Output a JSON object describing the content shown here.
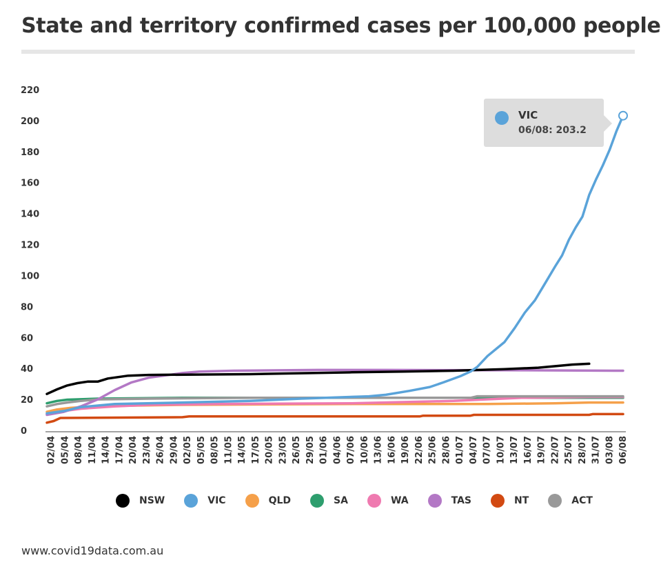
{
  "title": "State and territory confirmed cases per 100,000 people",
  "source": "www.covid19data.com.au",
  "tooltip": {
    "series": "VIC",
    "text": "06/08: 203.2",
    "color": "#5aa3d9"
  },
  "chart_data": {
    "type": "line",
    "title": "State and territory confirmed cases per 100,000 people",
    "xlabel": "",
    "ylabel": "",
    "ylim": [
      0,
      220
    ],
    "yticks": [
      0,
      20,
      40,
      60,
      80,
      100,
      120,
      140,
      160,
      180,
      200,
      220
    ],
    "x_start": "01/04",
    "x_end": "06/08",
    "xtick_labels": [
      "02/04",
      "05/04",
      "08/04",
      "11/04",
      "14/04",
      "17/04",
      "20/04",
      "23/04",
      "26/04",
      "29/04",
      "02/05",
      "05/05",
      "08/05",
      "11/05",
      "14/05",
      "17/05",
      "20/05",
      "23/05",
      "26/05",
      "29/05",
      "01/06",
      "04/06",
      "07/06",
      "10/06",
      "13/06",
      "16/06",
      "19/06",
      "22/06",
      "25/06",
      "28/06",
      "01/07",
      "04/07",
      "07/07",
      "10/07",
      "13/07",
      "16/07",
      "19/07",
      "22/07",
      "25/07",
      "28/07",
      "31/07",
      "03/08",
      "06/08"
    ],
    "legend_position": "bottom",
    "series": [
      {
        "name": "NSW",
        "color": "#000000",
        "points": [
          [
            0,
            23.5
          ],
          [
            3,
            26.5
          ],
          [
            6,
            29
          ],
          [
            9,
            30.5
          ],
          [
            12,
            31.5
          ],
          [
            15,
            31.5
          ],
          [
            18,
            33.5
          ],
          [
            24,
            35.3
          ],
          [
            30,
            35.8
          ],
          [
            41,
            36
          ],
          [
            60,
            36.3
          ],
          [
            90,
            37.5
          ],
          [
            105,
            38
          ],
          [
            120,
            38.5
          ],
          [
            135,
            39.5
          ],
          [
            145,
            40.5
          ],
          [
            155,
            42.5
          ],
          [
            160,
            43
          ]
        ]
      },
      {
        "name": "VIC",
        "color": "#5aa3d9",
        "points": [
          [
            0,
            11
          ],
          [
            5,
            12.5
          ],
          [
            10,
            15
          ],
          [
            20,
            17
          ],
          [
            40,
            18
          ],
          [
            60,
            19
          ],
          [
            75,
            20.5
          ],
          [
            95,
            22
          ],
          [
            100,
            23
          ],
          [
            107,
            25.5
          ],
          [
            113,
            28
          ],
          [
            117,
            31
          ],
          [
            122,
            35
          ],
          [
            125,
            38
          ],
          [
            127,
            41
          ],
          [
            130,
            48
          ],
          [
            135,
            57
          ],
          [
            138,
            66
          ],
          [
            141,
            76
          ],
          [
            144,
            84
          ],
          [
            147,
            95
          ],
          [
            150,
            106
          ],
          [
            152,
            113
          ],
          [
            154,
            123
          ],
          [
            156,
            131
          ],
          [
            158,
            138
          ],
          [
            160,
            152
          ],
          [
            162,
            162
          ],
          [
            164,
            171
          ],
          [
            166,
            181
          ],
          [
            168,
            193
          ],
          [
            170,
            203.2
          ]
        ]
      },
      {
        "name": "QLD",
        "color": "#f5a04a",
        "points": [
          [
            0,
            12
          ],
          [
            3,
            13.5
          ],
          [
            7,
            14.5
          ],
          [
            14,
            15.5
          ],
          [
            25,
            16
          ],
          [
            40,
            16.5
          ],
          [
            90,
            17
          ],
          [
            130,
            17
          ],
          [
            150,
            17.5
          ],
          [
            160,
            18
          ],
          [
            170,
            18
          ]
        ]
      },
      {
        "name": "SA",
        "color": "#2e9e6e",
        "points": [
          [
            0,
            17.5
          ],
          [
            3,
            19
          ],
          [
            6,
            19.8
          ],
          [
            15,
            20.5
          ],
          [
            40,
            21
          ],
          [
            70,
            21
          ],
          [
            120,
            21
          ],
          [
            170,
            21
          ]
        ]
      },
      {
        "name": "WA",
        "color": "#ef7ab0",
        "points": [
          [
            0,
            10.5
          ],
          [
            5,
            12.5
          ],
          [
            10,
            14
          ],
          [
            20,
            15.5
          ],
          [
            30,
            16.5
          ],
          [
            50,
            17
          ],
          [
            90,
            17.5
          ],
          [
            120,
            19
          ],
          [
            140,
            21
          ],
          [
            160,
            21.5
          ],
          [
            170,
            21.5
          ]
        ]
      },
      {
        "name": "TAS",
        "color": "#b378c5",
        "points": [
          [
            0,
            10
          ],
          [
            5,
            12
          ],
          [
            10,
            15.5
          ],
          [
            15,
            20
          ],
          [
            20,
            26
          ],
          [
            25,
            31
          ],
          [
            30,
            34
          ],
          [
            35,
            35.5
          ],
          [
            40,
            37
          ],
          [
            45,
            38
          ],
          [
            55,
            38.5
          ],
          [
            80,
            39
          ],
          [
            100,
            39
          ],
          [
            140,
            38.8
          ],
          [
            170,
            38.5
          ]
        ]
      },
      {
        "name": "NT",
        "color": "#d24a12",
        "points": [
          [
            0,
            5
          ],
          [
            2,
            6
          ],
          [
            4,
            8
          ],
          [
            40,
            8.5
          ],
          [
            42,
            9
          ],
          [
            110,
            9
          ],
          [
            111,
            9.5
          ],
          [
            125,
            9.5
          ],
          [
            126,
            10
          ],
          [
            160,
            10
          ],
          [
            161,
            10.5
          ],
          [
            170,
            10.5
          ]
        ]
      },
      {
        "name": "ACT",
        "color": "#999999",
        "points": [
          [
            0,
            15.5
          ],
          [
            3,
            17
          ],
          [
            6,
            18
          ],
          [
            10,
            19
          ],
          [
            15,
            20
          ],
          [
            30,
            20.5
          ],
          [
            60,
            21
          ],
          [
            125,
            21
          ],
          [
            127,
            22
          ],
          [
            170,
            22
          ]
        ]
      }
    ]
  }
}
